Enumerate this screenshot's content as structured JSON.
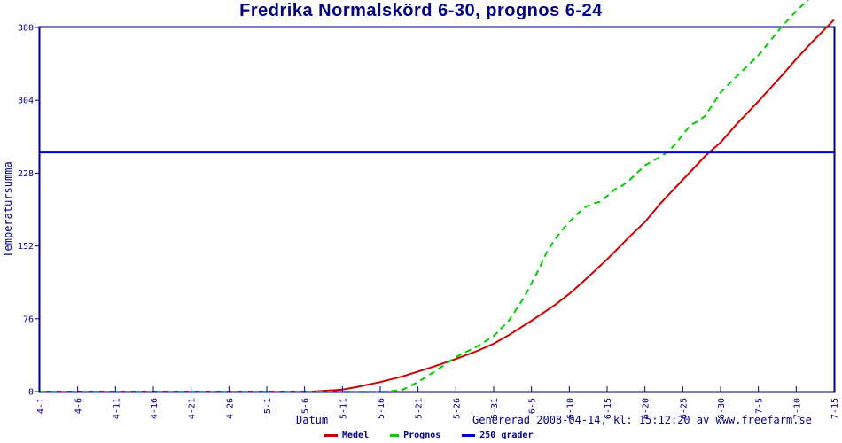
{
  "title": "Fredrika Normalskörd 6-30, prognos 6-24",
  "footer": "Genererad 2008-04-14, kl: 15:12:20 av www.freefarm.se",
  "colors": {
    "navy_text_axis": "#000080",
    "background": "#ffffff",
    "medel_red": "#cc0000",
    "prognos_green": "#00cc00",
    "reference_blue": "#0000cc"
  },
  "chart_data": {
    "type": "line",
    "title": "Fredrika Normalskörd 6-30, prognos 6-24",
    "xlabel": "Datum",
    "ylabel": "Temperatursumma",
    "x_unit": "date (month-day), daily resolution",
    "xlim_days": [
      0,
      105
    ],
    "ylim": [
      0,
      380
    ],
    "y_ticks": [
      0,
      76,
      152,
      228,
      304,
      380
    ],
    "x_tick_labels": [
      "4-1",
      "4-6",
      "4-11",
      "4-16",
      "4-21",
      "4-26",
      "5-1",
      "5-6",
      "5-11",
      "5-16",
      "5-21",
      "5-26",
      "5-31",
      "6-5",
      "6-10",
      "6-15",
      "6-20",
      "6-25",
      "6-30",
      "7-5",
      "7-10",
      "7-15"
    ],
    "x_tick_days": [
      0,
      5,
      10,
      15,
      20,
      25,
      30,
      35,
      40,
      45,
      50,
      55,
      60,
      65,
      70,
      75,
      80,
      85,
      90,
      95,
      100,
      105
    ],
    "grid": false,
    "legend_position": "bottom-center",
    "reference_line": {
      "value": 250,
      "label": "250 grader"
    },
    "series": [
      {
        "name": "Medel",
        "color": "#cc0000",
        "style": "solid",
        "width": 2,
        "points": [
          [
            0,
            0
          ],
          [
            36,
            0
          ],
          [
            38,
            1
          ],
          [
            40,
            2
          ],
          [
            42,
            5
          ],
          [
            45,
            10
          ],
          [
            48,
            16
          ],
          [
            50,
            21
          ],
          [
            52,
            26
          ],
          [
            55,
            34
          ],
          [
            58,
            43
          ],
          [
            60,
            50
          ],
          [
            62,
            59
          ],
          [
            65,
            74
          ],
          [
            68,
            90
          ],
          [
            70,
            102
          ],
          [
            72,
            116
          ],
          [
            75,
            138
          ],
          [
            78,
            162
          ],
          [
            80,
            177
          ],
          [
            82,
            196
          ],
          [
            85,
            221
          ],
          [
            88,
            246
          ],
          [
            90,
            260
          ],
          [
            92,
            278
          ],
          [
            95,
            303
          ],
          [
            98,
            329
          ],
          [
            100,
            347
          ],
          [
            102,
            364
          ],
          [
            105,
            388
          ]
        ]
      },
      {
        "name": "Prognos",
        "color": "#00cc00",
        "style": "dashed",
        "width": 2,
        "points": [
          [
            0,
            0
          ],
          [
            40,
            0
          ],
          [
            44,
            0
          ],
          [
            46,
            0
          ],
          [
            48,
            2
          ],
          [
            50,
            10
          ],
          [
            52,
            20
          ],
          [
            55,
            36
          ],
          [
            58,
            48
          ],
          [
            60,
            58
          ],
          [
            62,
            74
          ],
          [
            64,
            98
          ],
          [
            66,
            128
          ],
          [
            67,
            145
          ],
          [
            68,
            158
          ],
          [
            69,
            168
          ],
          [
            70,
            177
          ],
          [
            71,
            185
          ],
          [
            72,
            192
          ],
          [
            73,
            196
          ],
          [
            74,
            198
          ],
          [
            75,
            204
          ],
          [
            76,
            211
          ],
          [
            77,
            215
          ],
          [
            78,
            221
          ],
          [
            80,
            236
          ],
          [
            82,
            245
          ],
          [
            83,
            250
          ],
          [
            84,
            258
          ],
          [
            85,
            268
          ],
          [
            86,
            278
          ],
          [
            87,
            282
          ],
          [
            88,
            288
          ],
          [
            90,
            312
          ],
          [
            92,
            328
          ],
          [
            95,
            351
          ],
          [
            98,
            380
          ],
          [
            100,
            397
          ],
          [
            102,
            412
          ]
        ]
      },
      {
        "name": "250 grader",
        "color": "#0000cc",
        "style": "solid",
        "width": 3,
        "points": [
          [
            0,
            250
          ],
          [
            105,
            250
          ]
        ]
      }
    ]
  }
}
